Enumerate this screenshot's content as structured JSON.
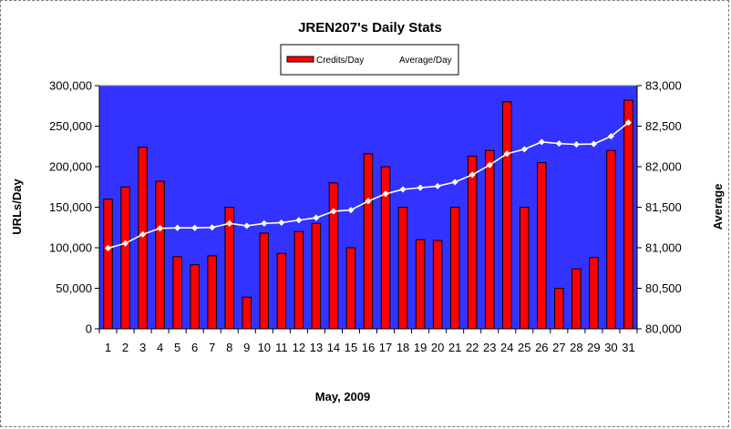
{
  "chart_data": {
    "type": "bar",
    "title": "JREN207's Daily Stats",
    "xlabel": "May, 2009",
    "ylabel": "URLs/Day",
    "y2label": "Average",
    "categories": [
      "1",
      "2",
      "3",
      "4",
      "5",
      "6",
      "7",
      "8",
      "9",
      "10",
      "11",
      "12",
      "13",
      "14",
      "15",
      "16",
      "17",
      "18",
      "19",
      "20",
      "21",
      "22",
      "23",
      "24",
      "25",
      "26",
      "27",
      "28",
      "29",
      "30",
      "31"
    ],
    "ylim": [
      0,
      300000
    ],
    "y2lim": [
      80000,
      83000
    ],
    "yticks": [
      "0",
      "50,000",
      "100,000",
      "150,000",
      "200,000",
      "250,000",
      "300,000"
    ],
    "y2ticks": [
      "80,000",
      "80,500",
      "81,000",
      "81,500",
      "82,000",
      "82,500",
      "83,000"
    ],
    "grid": false,
    "legend_position": "top-center",
    "series": [
      {
        "name": "Credits/Day",
        "type": "bar",
        "axis": "left",
        "color": "#ff0000",
        "values": [
          160000,
          175000,
          224000,
          182000,
          89000,
          79000,
          90000,
          150000,
          39000,
          118000,
          93000,
          120000,
          130000,
          180000,
          100000,
          216000,
          200000,
          150000,
          110000,
          109000,
          150000,
          213000,
          220000,
          280000,
          150000,
          205000,
          50000,
          74000,
          88000,
          220000,
          282000
        ]
      },
      {
        "name": "Average/Day",
        "type": "line",
        "axis": "right",
        "color": "#ffffff",
        "values": [
          80995,
          81055,
          81165,
          81240,
          81245,
          81245,
          81250,
          81300,
          81270,
          81300,
          81310,
          81340,
          81370,
          81450,
          81465,
          81575,
          81665,
          81720,
          81740,
          81760,
          81810,
          81900,
          82020,
          82160,
          82215,
          82305,
          82285,
          82275,
          82280,
          82375,
          82545
        ]
      }
    ],
    "colors": {
      "plot_background": "#3333ff",
      "bar_fill": "#ff0000",
      "line": "#ffffff"
    }
  }
}
